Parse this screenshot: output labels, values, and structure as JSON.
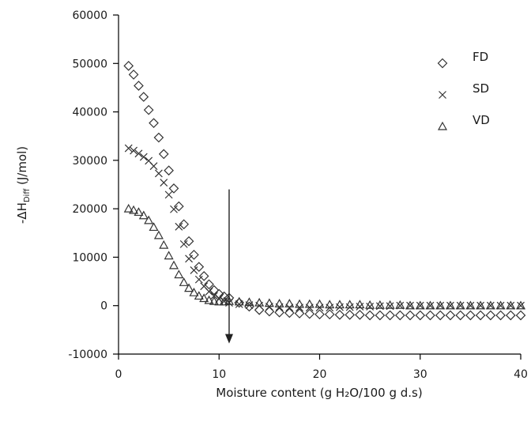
{
  "chart_data": {
    "type": "scatter",
    "xlabel": "Moisture content (g H₂O/100 g d.s)",
    "ylabel": {
      "prefix": "-ΔH",
      "subscript": "Diff",
      "suffix": " (J/mol)"
    },
    "xlim": [
      0,
      40
    ],
    "ylim": [
      -10000,
      60000
    ],
    "xticks": [
      0,
      10,
      20,
      30,
      40
    ],
    "yticks": [
      -10000,
      0,
      10000,
      20000,
      30000,
      40000,
      50000,
      60000
    ],
    "xtick_labels": [
      "0",
      "10",
      "20",
      "30",
      "40"
    ],
    "ytick_labels": [
      "-10000",
      "0",
      "10000",
      "20000",
      "30000",
      "40000",
      "50000",
      "60000"
    ],
    "grid": false,
    "legend_position": "top-right",
    "series": [
      {
        "name": "FD",
        "marker": "diamond",
        "x": [
          1,
          1.5,
          2,
          2.5,
          3,
          3.5,
          4,
          4.5,
          5,
          5.5,
          6,
          6.5,
          7,
          7.5,
          8,
          8.5,
          9,
          9.5,
          10,
          10.5,
          11,
          12,
          13,
          14,
          15,
          16,
          17,
          18,
          19,
          20,
          21,
          22,
          23,
          24,
          25,
          26,
          27,
          28,
          29,
          30,
          31,
          32,
          33,
          34,
          35,
          36,
          37,
          38,
          39,
          40
        ],
        "y": [
          49500,
          47700,
          45400,
          43100,
          40400,
          37700,
          34700,
          31300,
          27900,
          24200,
          20500,
          16800,
          13300,
          10500,
          8000,
          6100,
          4400,
          3200,
          2400,
          1900,
          1600,
          600,
          -200,
          -900,
          -1200,
          -1400,
          -1500,
          -1600,
          -1700,
          -1800,
          -1800,
          -1900,
          -1900,
          -1900,
          -2000,
          -2000,
          -2000,
          -2000,
          -2000,
          -2000,
          -2000,
          -2000,
          -2000,
          -2000,
          -2000,
          -2000,
          -2000,
          -2000,
          -2000,
          -2000
        ]
      },
      {
        "name": "SD",
        "marker": "x",
        "x": [
          1,
          1.5,
          2,
          2.5,
          3,
          3.5,
          4,
          4.5,
          5,
          5.5,
          6,
          6.5,
          7,
          7.5,
          8,
          8.5,
          9,
          9.5,
          10,
          10.5,
          11,
          12,
          13,
          14,
          15,
          16,
          17,
          18,
          19,
          20,
          21,
          22,
          23,
          24,
          25,
          26,
          27,
          28,
          29,
          30,
          31,
          32,
          33,
          34,
          35,
          36,
          37,
          38,
          39,
          40
        ],
        "y": [
          32500,
          32000,
          31400,
          30700,
          29900,
          28800,
          27300,
          25400,
          22900,
          19900,
          16300,
          12700,
          9700,
          7300,
          5400,
          4000,
          2900,
          2000,
          1400,
          900,
          600,
          300,
          100,
          0,
          -200,
          -300,
          -400,
          -400,
          -400,
          -400,
          -400,
          -300,
          -300,
          -200,
          -200,
          -100,
          -100,
          0,
          0,
          0,
          0,
          0,
          0,
          0,
          0,
          0,
          0,
          0,
          0,
          0
        ]
      },
      {
        "name": "VD",
        "marker": "triangle",
        "x": [
          1,
          1.5,
          2,
          2.5,
          3,
          3.5,
          4,
          4.5,
          5,
          5.5,
          6,
          6.5,
          7,
          7.5,
          8,
          8.5,
          9,
          9.5,
          10,
          10.5,
          11,
          12,
          13,
          14,
          15,
          16,
          17,
          18,
          19,
          20,
          21,
          22,
          23,
          24,
          25,
          26,
          27,
          28,
          29,
          30,
          31,
          32,
          33,
          34,
          35,
          36,
          37,
          38,
          39,
          40
        ],
        "y": [
          20000,
          19700,
          19300,
          18600,
          17600,
          16200,
          14500,
          12500,
          10300,
          8300,
          6400,
          4800,
          3600,
          2700,
          2000,
          1500,
          1100,
          900,
          800,
          800,
          900,
          800,
          700,
          600,
          500,
          400,
          400,
          300,
          300,
          300,
          200,
          200,
          200,
          200,
          100,
          100,
          100,
          100,
          0,
          0,
          0,
          0,
          0,
          0,
          0,
          0,
          0,
          0,
          0,
          0
        ]
      }
    ],
    "annotations": [
      {
        "type": "arrow",
        "x": 11,
        "y_from": 24000,
        "y_to": -7500
      }
    ]
  }
}
